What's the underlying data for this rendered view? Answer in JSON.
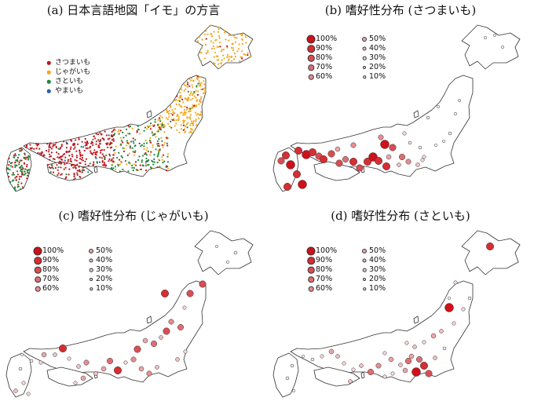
{
  "panels": [
    {
      "title": "(a) 日本言語地図「イモ」の方言"
    },
    {
      "title": "(b) 嗜好性分布 (さつまいも)"
    },
    {
      "title": "(c) 嗜好性分布 (じゃがいも)"
    },
    {
      "title": "(d) 嗜好性分布 (さといも)"
    }
  ],
  "legend_a": {
    "items": [
      {
        "label": "さつまいも",
        "color": "#c0141c"
      },
      {
        "label": "じゃがいも",
        "color": "#f2a81d"
      },
      {
        "label": "さといも",
        "color": "#1c8a3c"
      },
      {
        "label": "やまいも",
        "color": "#2a5fa8"
      }
    ]
  },
  "legend_pref": {
    "levels": [
      "100%",
      "90%",
      "80%",
      "70%",
      "60%",
      "50%",
      "40%",
      "30%",
      "20%",
      "10%"
    ],
    "colors": [
      "#d0101a",
      "#d52e33",
      "#da4d53",
      "#df6d72",
      "#e58d91",
      "#eba5a8",
      "#f1c1c3",
      "#f6d9da",
      "#fbecec",
      "#ffffff"
    ]
  }
}
